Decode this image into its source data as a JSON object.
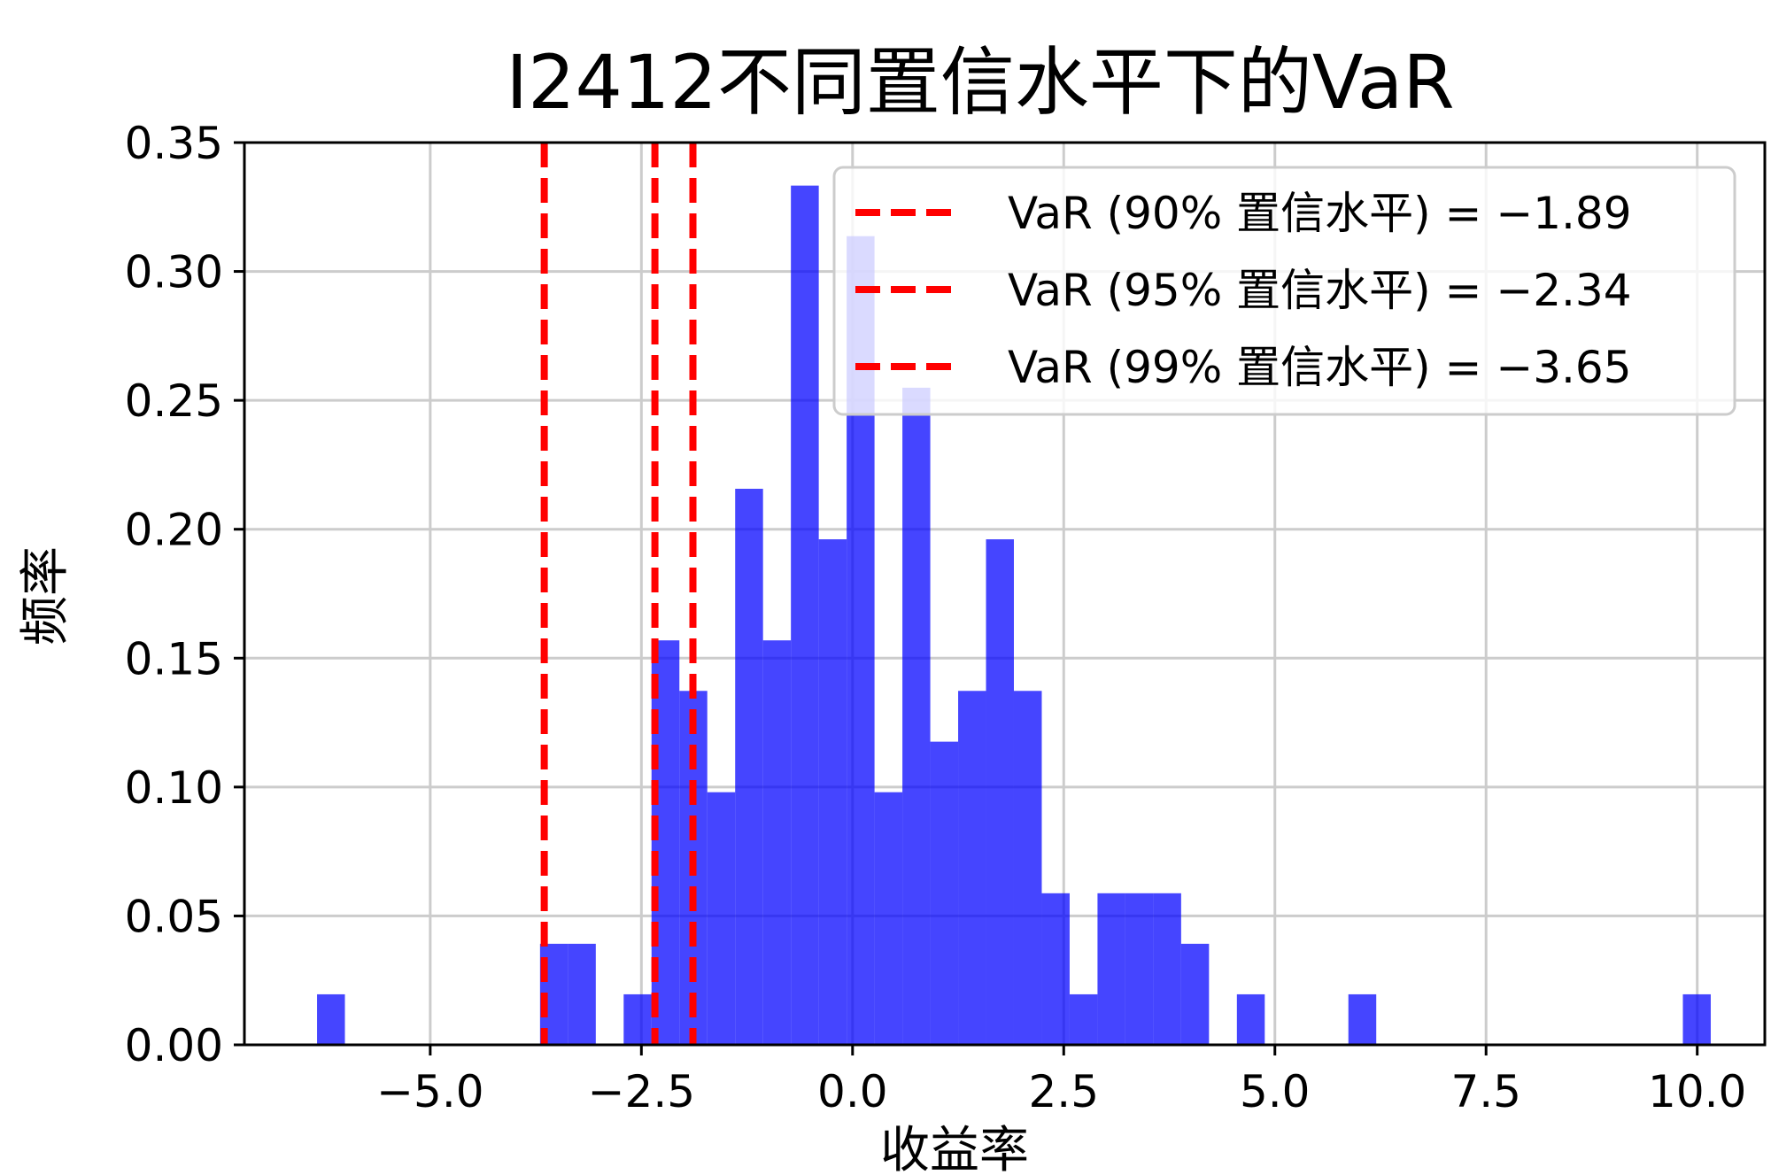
{
  "chart_data": {
    "type": "bar",
    "title": "I2412不同置信水平下的VaR",
    "xlabel": "收益率",
    "ylabel": "频率",
    "xlim": [
      -7.2,
      10.8
    ],
    "ylim": [
      0,
      0.35
    ],
    "xticks": [
      -5.0,
      -2.5,
      0.0,
      2.5,
      5.0,
      7.5,
      10.0
    ],
    "xtick_labels": [
      "−5.0",
      "−2.5",
      "0.0",
      "2.5",
      "5.0",
      "7.5",
      "10.0"
    ],
    "yticks": [
      0.0,
      0.05,
      0.1,
      0.15,
      0.2,
      0.25,
      0.3,
      0.35
    ],
    "ytick_labels": [
      "0.00",
      "0.05",
      "0.10",
      "0.15",
      "0.20",
      "0.25",
      "0.30",
      "0.35"
    ],
    "grid": true,
    "bin_width": 0.33,
    "bar_color": "#0000ff",
    "bar_opacity": 0.73,
    "bins": [
      {
        "left": -6.34,
        "value": 0.0196
      },
      {
        "left": -3.7,
        "value": 0.0392
      },
      {
        "left": -3.37,
        "value": 0.0392
      },
      {
        "left": -2.71,
        "value": 0.0196
      },
      {
        "left": -2.38,
        "value": 0.1569
      },
      {
        "left": -2.05,
        "value": 0.1373
      },
      {
        "left": -1.72,
        "value": 0.098
      },
      {
        "left": -1.39,
        "value": 0.2157
      },
      {
        "left": -1.06,
        "value": 0.1569
      },
      {
        "left": -0.73,
        "value": 0.3333
      },
      {
        "left": -0.4,
        "value": 0.1961
      },
      {
        "left": -0.07,
        "value": 0.3137
      },
      {
        "left": 0.26,
        "value": 0.098
      },
      {
        "left": 0.59,
        "value": 0.2549
      },
      {
        "left": 0.92,
        "value": 0.1176
      },
      {
        "left": 1.25,
        "value": 0.1373
      },
      {
        "left": 1.58,
        "value": 0.1961
      },
      {
        "left": 1.91,
        "value": 0.1373
      },
      {
        "left": 2.24,
        "value": 0.0588
      },
      {
        "left": 2.57,
        "value": 0.0196
      },
      {
        "left": 2.9,
        "value": 0.0588
      },
      {
        "left": 3.23,
        "value": 0.0588
      },
      {
        "left": 3.56,
        "value": 0.0588
      },
      {
        "left": 3.89,
        "value": 0.0392
      },
      {
        "left": 4.55,
        "value": 0.0196
      },
      {
        "left": 5.87,
        "value": 0.0196
      },
      {
        "left": 9.83,
        "value": 0.0196
      }
    ],
    "vlines": [
      {
        "x": -1.89,
        "color": "#ff0000",
        "style": "dashed",
        "label": "VaR (90% 置信水平) = −1.89"
      },
      {
        "x": -2.34,
        "color": "#ff0000",
        "style": "dashed",
        "label": "VaR (95% 置信水平) = −2.34"
      },
      {
        "x": -3.65,
        "color": "#ff0000",
        "style": "dashed",
        "label": "VaR (99% 置信水平) = −3.65"
      }
    ],
    "legend_position": "upper right"
  }
}
